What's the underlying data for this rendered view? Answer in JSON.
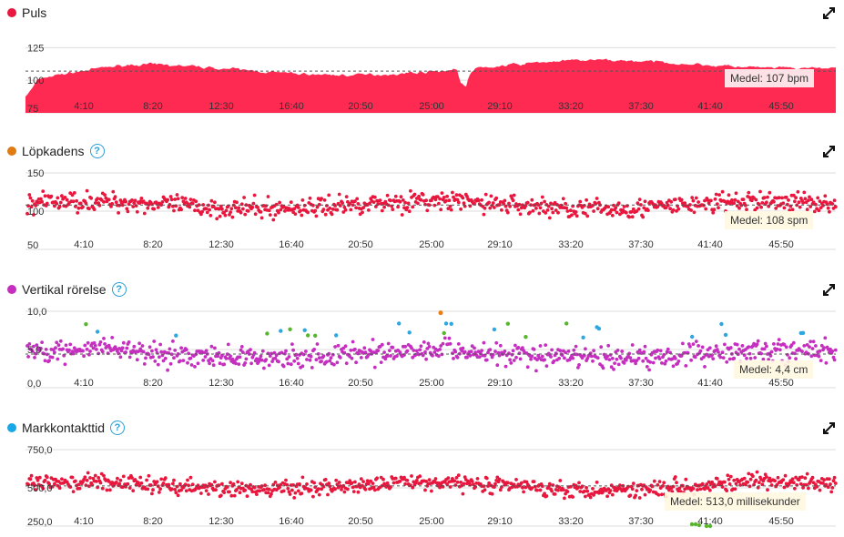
{
  "xticks": [
    "4:10",
    "8:20",
    "12:30",
    "16:40",
    "20:50",
    "25:00",
    "29:10",
    "33:20",
    "37:30",
    "41:40",
    "45:50"
  ],
  "panels": [
    {
      "id": "puls",
      "title": "Puls",
      "dot_color": "#e8173e",
      "help": false,
      "y_labels": [
        "125",
        "100",
        "75"
      ],
      "y_range": [
        75,
        135
      ],
      "y_ticks": [
        125,
        100,
        75
      ],
      "average": 107,
      "average_label": "Medel: 107 bpm",
      "chart_data": {
        "type": "area",
        "series_color": "#ff2a52",
        "x_unit": "minutes",
        "xlim": [
          0,
          48.5
        ],
        "ylim": [
          75,
          135
        ]
      }
    },
    {
      "id": "lopkadens",
      "title": "Löpkadens",
      "dot_color": "#e07b14",
      "help": true,
      "y_labels": [
        "150",
        "100",
        "50"
      ],
      "y_range": [
        50,
        150
      ],
      "y_ticks": [
        150,
        100,
        50
      ],
      "average": 108,
      "average_label": "Medel: 108 spm",
      "chart_data": {
        "type": "scatter",
        "series_color": "#e8173e",
        "xlim": [
          0,
          48.5
        ],
        "ylim": [
          50,
          150
        ]
      }
    },
    {
      "id": "vertikal",
      "title": "Vertikal rörelse",
      "dot_color": "#c52fbf",
      "help": true,
      "y_labels": [
        "10,0",
        "5,0",
        "0,0"
      ],
      "y_range": [
        0,
        10
      ],
      "y_ticks": [
        10,
        5,
        0
      ],
      "average": 4.4,
      "average_label": "Medel: 4,4 cm",
      "chart_data": {
        "type": "scatter",
        "series_color": "#c52fbf",
        "outlier_colors": [
          "#2ea7e0",
          "#57b52e",
          "#ee7d11"
        ],
        "xlim": [
          0,
          48.5
        ],
        "ylim": [
          0,
          10
        ]
      }
    },
    {
      "id": "markkontakt",
      "title": "Markkontakttid",
      "dot_color": "#1aa7e6",
      "help": true,
      "y_labels": [
        "750,0",
        "500,0",
        "250,0"
      ],
      "y_range": [
        250,
        750
      ],
      "y_ticks": [
        750,
        500,
        250
      ],
      "average": 513,
      "average_label": "Medel: 513,0 millisekunder",
      "chart_data": {
        "type": "scatter",
        "series_color": "#e8173e",
        "outlier_colors": [
          "#57b52e"
        ],
        "xlim": [
          0,
          48.5
        ],
        "ylim": [
          250,
          750
        ]
      }
    }
  ]
}
